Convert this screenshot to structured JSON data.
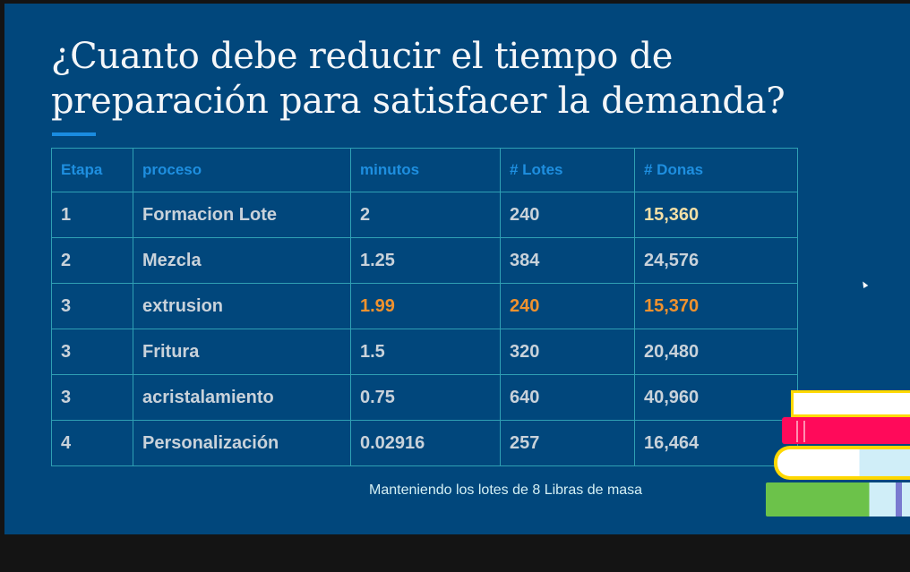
{
  "slide": {
    "title_line1": "¿Cuanto debe reducir el tiempo de",
    "title_line2": "preparación para satisfacer la demanda?",
    "note": "Manteniendo los lotes de 8 Libras de masa",
    "colors": {
      "background": "#01477c",
      "header_text": "#1e8fe0",
      "highlight_yellow": "#f3dfa6",
      "highlight_orange": "#f0922e"
    }
  },
  "table": {
    "headers": [
      "Etapa",
      "proceso",
      "minutos",
      "# Lotes",
      "# Donas"
    ],
    "rows": [
      [
        "1",
        "Formacion Lote",
        "2",
        "240",
        "15,360"
      ],
      [
        "2",
        "Mezcla",
        "1.25",
        "384",
        "24,576"
      ],
      [
        "3",
        "extrusion",
        "1.99",
        "240",
        "15,370"
      ],
      [
        "3",
        "Fritura",
        "1.5",
        "320",
        "20,480"
      ],
      [
        "3",
        "acristalamiento",
        "0.75",
        "640",
        "40,960"
      ],
      [
        "4",
        "Personalización",
        "0.02916",
        "257",
        "16,464"
      ]
    ]
  }
}
